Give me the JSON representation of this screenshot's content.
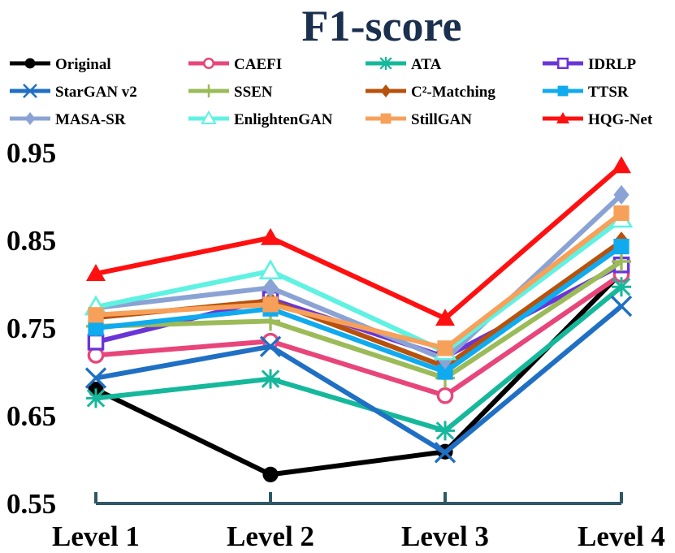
{
  "chart_data": {
    "type": "line",
    "title": "F1-score",
    "categories": [
      "Level 1",
      "Level 2",
      "Level 3",
      "Level 4"
    ],
    "y_ticks": [
      "0.95",
      "0.85",
      "0.75",
      "0.65",
      "0.55"
    ],
    "ylim": [
      0.55,
      0.95
    ],
    "grid": false,
    "legend_position": "top",
    "series": [
      {
        "name": "Original",
        "color": "#000000",
        "marker": "circle-filled",
        "values": [
          0.68,
          0.583,
          0.609,
          0.813
        ]
      },
      {
        "name": "CAEFI",
        "color": "#e8457a",
        "marker": "circle-open",
        "values": [
          0.719,
          0.735,
          0.673,
          0.811
        ]
      },
      {
        "name": "ATA",
        "color": "#16b89c",
        "marker": "asterisk",
        "values": [
          0.67,
          0.692,
          0.633,
          0.797
        ]
      },
      {
        "name": "IDRLP",
        "color": "#6a35d6",
        "marker": "square-open",
        "values": [
          0.734,
          0.783,
          0.717,
          0.822
        ]
      },
      {
        "name": "StarGAN v2",
        "color": "#1f6fc4",
        "marker": "x",
        "values": [
          0.693,
          0.729,
          0.608,
          0.775
        ]
      },
      {
        "name": "SSEN",
        "color": "#9bbb59",
        "marker": "plus",
        "values": [
          0.752,
          0.758,
          0.693,
          0.826
        ]
      },
      {
        "name": "C²-Matching",
        "color": "#b8510b",
        "marker": "diamond",
        "values": [
          0.762,
          0.781,
          0.706,
          0.849
        ]
      },
      {
        "name": "TTSR",
        "color": "#10aaee",
        "marker": "square-filled",
        "values": [
          0.75,
          0.772,
          0.7,
          0.843
        ]
      },
      {
        "name": "MASA-SR",
        "color": "#8aa3d4",
        "marker": "diamond",
        "values": [
          0.773,
          0.796,
          0.714,
          0.902
        ]
      },
      {
        "name": "EnlightenGAN",
        "color": "#5ff2e2",
        "marker": "triangle-open",
        "values": [
          0.774,
          0.815,
          0.723,
          0.874
        ]
      },
      {
        "name": "StillGAN",
        "color": "#f7a05a",
        "marker": "square-filled",
        "values": [
          0.765,
          0.777,
          0.727,
          0.881
        ]
      },
      {
        "name": "HQG-Net",
        "color": "#ff1010",
        "marker": "triangle-filled",
        "values": [
          0.812,
          0.853,
          0.761,
          0.935
        ]
      }
    ]
  }
}
